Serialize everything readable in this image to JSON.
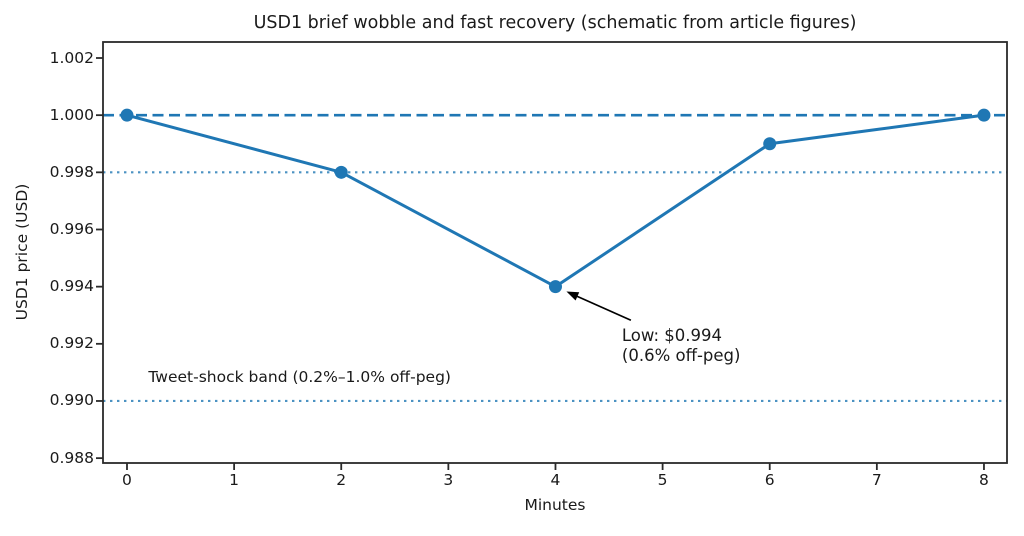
{
  "window": {
    "background": "#ffffff"
  },
  "chart_data": {
    "type": "line",
    "title": "USD1 brief wobble and fast recovery (schematic from article figures)",
    "xlabel": "Minutes",
    "ylabel": "USD1 price (USD)",
    "x": [
      0,
      2,
      4,
      6,
      8
    ],
    "y": [
      1.0,
      0.998,
      0.994,
      0.999,
      1.0
    ],
    "series_name": "USD1 price",
    "line_color": "#1f77b4",
    "marker": "circle",
    "xtick_labels": [
      "0",
      "1",
      "2",
      "3",
      "4",
      "5",
      "6",
      "7",
      "8"
    ],
    "xtick_values": [
      0,
      1,
      2,
      3,
      4,
      5,
      6,
      7,
      8
    ],
    "ytick_labels": [
      "1.002",
      "1.000",
      "0.998",
      "0.996",
      "0.994",
      "0.992",
      "0.990",
      "0.988"
    ],
    "ytick_values": [
      1.002,
      1.0,
      0.998,
      0.996,
      0.994,
      0.992,
      0.99,
      0.988
    ],
    "xlim": [
      -0.224,
      8.215
    ],
    "ylim": [
      0.98783,
      1.00256
    ],
    "grid": false,
    "legend": "none",
    "reference_lines": [
      {
        "y": 1.0,
        "style": "dashed",
        "color": "#1f77b4",
        "meaning": "peg-1.000"
      },
      {
        "y": 0.998,
        "style": "dotted",
        "color": "#1f77b4",
        "meaning": "0.2-percent-off-peg"
      },
      {
        "y": 0.99,
        "style": "dotted",
        "color": "#1f77b4",
        "meaning": "1.0-percent-off-peg"
      }
    ],
    "annotation": {
      "lines": [
        "Low: $0.994",
        "(0.6% off-peg)"
      ],
      "xy": [
        4,
        0.994
      ],
      "xytext": [
        4.62,
        0.99265
      ],
      "arrow_color": "#000000"
    },
    "band_label": {
      "text": "Tweet-shock band (0.2%–1.0% off-peg)",
      "xy": [
        0.2,
        0.9906
      ]
    },
    "axis_color": "#2a2a2a",
    "text_color": "#1a1a1a"
  }
}
